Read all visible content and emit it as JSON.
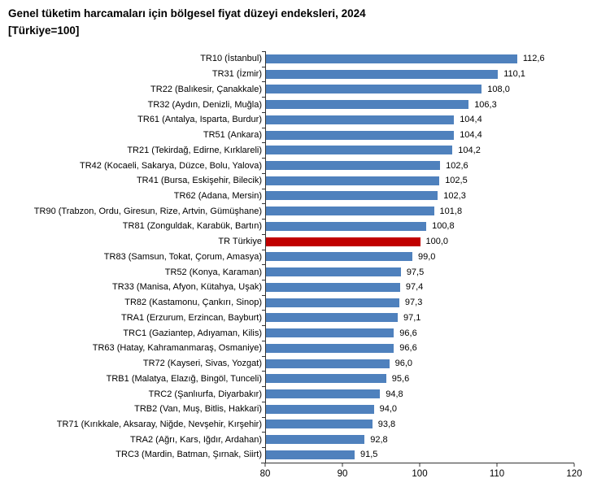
{
  "title": {
    "line1": "Genel tüketim harcamaları için bölgesel fiyat düzeyi endeksleri, 2024",
    "line2": "[Türkiye=100]"
  },
  "chart_data": {
    "type": "bar",
    "orientation": "horizontal",
    "title": "Genel tüketim harcamaları için bölgesel fiyat düzeyi endeksleri, 2024",
    "subtitle": "[Türkiye=100]",
    "xlim": [
      80,
      120
    ],
    "xticks": [
      "80",
      "90",
      "100",
      "110",
      "120"
    ],
    "xtick_values": [
      80,
      90,
      100,
      110,
      120
    ],
    "grid": false,
    "legend": "none",
    "bar_color": "#4F81BD",
    "highlight_color": "#C00000",
    "highlight_index": 12,
    "categories": [
      "TR10 (İstanbul)",
      "TR31 (İzmir)",
      "TR22 (Balıkesir, Çanakkale)",
      "TR32 (Aydın, Denizli, Muğla)",
      "TR61 (Antalya, Isparta, Burdur)",
      "TR51 (Ankara)",
      "TR21 (Tekirdağ, Edirne, Kırklareli)",
      "TR42 (Kocaeli, Sakarya, Düzce, Bolu, Yalova)",
      "TR41 (Bursa, Eskişehir, Bilecik)",
      "TR62 (Adana, Mersin)",
      "TR90 (Trabzon, Ordu, Giresun, Rize, Artvin, Gümüşhane)",
      "TR81 (Zonguldak, Karabük, Bartın)",
      "TR Türkiye",
      "TR83 (Samsun, Tokat, Çorum, Amasya)",
      "TR52 (Konya, Karaman)",
      "TR33 (Manisa, Afyon, Kütahya, Uşak)",
      "TR82 (Kastamonu, Çankırı, Sinop)",
      "TRA1 (Erzurum, Erzincan, Bayburt)",
      "TRC1 (Gaziantep, Adıyaman, Kilis)",
      "TR63 (Hatay, Kahramanmaraş, Osmaniye)",
      "TR72 (Kayseri, Sivas, Yozgat)",
      "TRB1 (Malatya, Elazığ, Bingöl, Tunceli)",
      "TRC2 (Şanlıurfa, Diyarbakır)",
      "TRB2 (Van, Muş, Bitlis, Hakkari)",
      "TR71 (Kırıkkale, Aksaray, Niğde, Nevşehir, Kırşehir)",
      "TRA2 (Ağrı, Kars, Iğdır, Ardahan)",
      "TRC3 (Mardin, Batman, Şırnak, Siirt)"
    ],
    "values": [
      112.6,
      110.1,
      108.0,
      106.3,
      104.4,
      104.4,
      104.2,
      102.6,
      102.5,
      102.3,
      101.8,
      100.8,
      100.0,
      99.0,
      97.5,
      97.4,
      97.3,
      97.1,
      96.6,
      96.6,
      96.0,
      95.6,
      94.8,
      94.0,
      93.8,
      92.8,
      91.5
    ],
    "value_labels": [
      "112,6",
      "110,1",
      "108,0",
      "106,3",
      "104,4",
      "104,4",
      "104,2",
      "102,6",
      "102,5",
      "102,3",
      "101,8",
      "100,8",
      "100,0",
      "99,0",
      "97,5",
      "97,4",
      "97,3",
      "97,1",
      "96,6",
      "96,6",
      "96,0",
      "95,6",
      "94,8",
      "94,0",
      "93,8",
      "92,8",
      "91,5"
    ]
  }
}
